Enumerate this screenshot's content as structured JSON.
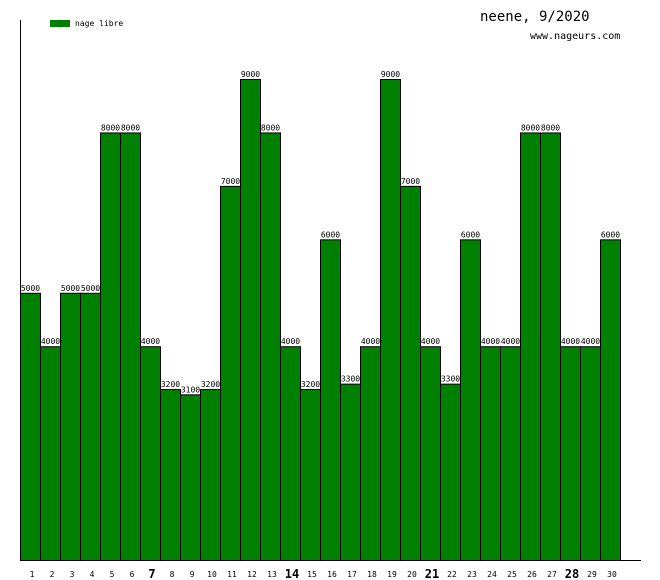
{
  "header": {
    "title": "neene, 9/2020",
    "site": "www.nageurs.com"
  },
  "legend": {
    "label": "nage libre",
    "color": "#008000"
  },
  "chart_data": {
    "type": "bar",
    "title": "neene, 9/2020",
    "xlabel": "",
    "ylabel": "",
    "categories": [
      "1",
      "2",
      "3",
      "4",
      "5",
      "6",
      "7",
      "8",
      "9",
      "10",
      "11",
      "12",
      "13",
      "14",
      "15",
      "16",
      "17",
      "18",
      "19",
      "20",
      "21",
      "22",
      "23",
      "24",
      "25",
      "26",
      "27",
      "28",
      "29",
      "30"
    ],
    "emphasized_categories": [
      "7",
      "14",
      "21",
      "28"
    ],
    "series": [
      {
        "name": "nage libre",
        "color": "#008000",
        "values": [
          5000,
          4000,
          5000,
          5000,
          8000,
          8000,
          4000,
          3200,
          3100,
          3200,
          7000,
          9000,
          8000,
          4000,
          3200,
          6000,
          3300,
          4000,
          9000,
          7000,
          4000,
          3300,
          6000,
          4000,
          4000,
          8000,
          8000,
          4000,
          4000,
          6000
        ]
      }
    ],
    "ylim": [
      0,
      9000
    ],
    "grid": false,
    "legend_position": "top-left"
  }
}
